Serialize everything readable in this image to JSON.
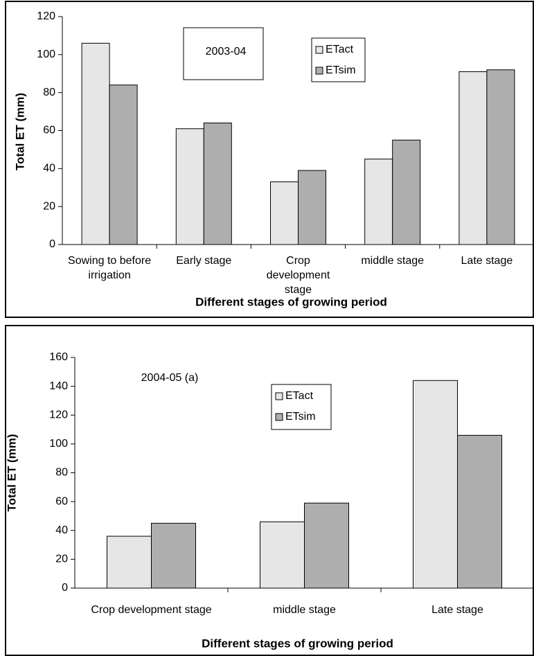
{
  "chart_data": [
    {
      "type": "bar",
      "annotation": "2003-04",
      "y_label": "Total  ET (mm)",
      "x_label": "Different stages of growing period",
      "categories": [
        "Sowing to before irrigation",
        "Early stage",
        "Crop development stage",
        "middle stage",
        "Late stage"
      ],
      "series": [
        {
          "name": "ETact",
          "color": "#e6e6e6",
          "values": [
            106,
            61,
            33,
            45,
            91
          ]
        },
        {
          "name": "ETsim",
          "color": "#aeaeae",
          "values": [
            84,
            64,
            39,
            55,
            92
          ]
        }
      ],
      "ylim": [
        0,
        120
      ],
      "yticks": [
        0,
        20,
        40,
        60,
        80,
        100,
        120
      ]
    },
    {
      "type": "bar",
      "annotation": "2004-05 (a)",
      "y_label": "Total  ET (mm)",
      "x_label": "Different stages of growing period",
      "categories": [
        "Crop development stage",
        "middle stage",
        "Late stage"
      ],
      "series": [
        {
          "name": "ETact",
          "color": "#e6e6e6",
          "values": [
            36,
            46,
            144
          ]
        },
        {
          "name": "ETsim",
          "color": "#aeaeae",
          "values": [
            45,
            59,
            106
          ]
        }
      ],
      "ylim": [
        0,
        160
      ],
      "yticks": [
        0,
        20,
        40,
        60,
        80,
        100,
        120,
        140,
        160
      ]
    }
  ]
}
